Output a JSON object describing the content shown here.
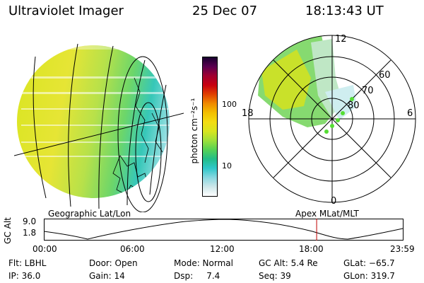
{
  "header": {
    "instrument": "Ultraviolet Imager",
    "date": "25 Dec 07",
    "time": "18:13:43 UT"
  },
  "colorbar": {
    "label": "photon cm⁻²s⁻¹",
    "ticks": [
      "100",
      "10"
    ],
    "colors": [
      "#ffffff",
      "#cde7ea",
      "#88d7e0",
      "#2fc7c9",
      "#22bd88",
      "#55d255",
      "#9ee03a",
      "#d8e51f",
      "#f3dc12",
      "#f3c000",
      "#f08a00",
      "#e04000",
      "#c80010",
      "#a00030",
      "#5a0050",
      "#17002e"
    ]
  },
  "polar_plot": {
    "mlt_labels": [
      "12",
      "18",
      "6",
      "0"
    ],
    "mlat_labels": [
      "60",
      "70",
      "80"
    ]
  },
  "timeseries": {
    "left_title": "Geographic Lat/Lon",
    "right_title": "Apex MLat/MLT",
    "y_axis_label": "GC Alt",
    "y_ticks": [
      "9.0",
      "1.8"
    ],
    "x_ticks": [
      "00:00",
      "06:00",
      "12:00",
      "18:00",
      "23:59"
    ],
    "marker_time": "18:13:43",
    "marker_color": "#c00000"
  },
  "footer": {
    "filter": "Flt: LBHL",
    "ip": "IP: 36.0",
    "door": "Door: Open",
    "gain": "Gain: 14",
    "mode": "Mode: Normal",
    "dsp": "Dsp:     7.4",
    "gc_alt": "GC Alt: 5.4 Re",
    "seq": "Seq: 39",
    "glat": "GLat: −65.7",
    "glon": "GLon: 319.7"
  }
}
